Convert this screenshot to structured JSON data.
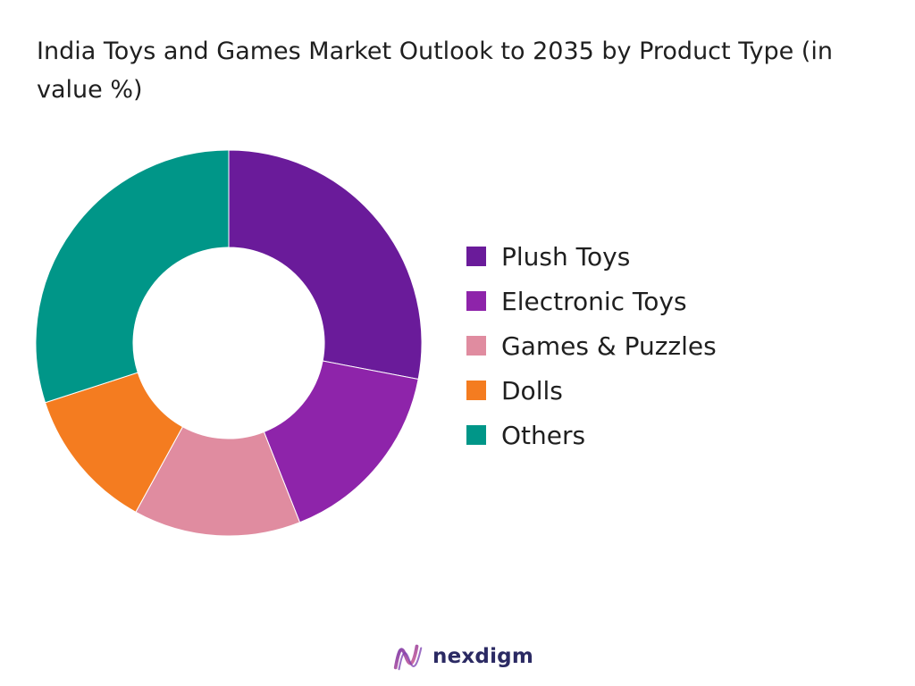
{
  "title": "India Toys and Games Market Outlook to 2035 by Product Type (in value %)",
  "brand": {
    "name": "nexdigm"
  },
  "chart_data": {
    "type": "pie",
    "donut": true,
    "legend_position": "right",
    "categories": [
      "Plush Toys",
      "Electronic Toys",
      "Games & Puzzles",
      "Dolls",
      "Others"
    ],
    "values": [
      28,
      16,
      14,
      12,
      30
    ],
    "colors": [
      "#6a1b9a",
      "#8e24aa",
      "#e08ca0",
      "#f47c20",
      "#009688"
    ]
  }
}
